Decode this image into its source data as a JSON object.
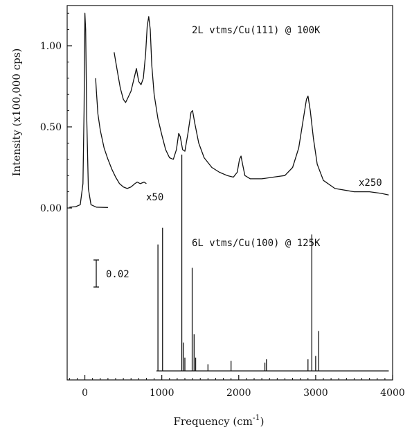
{
  "chart_data": {
    "type": "line",
    "xlabel": "Frequency (cm",
    "xlabel_exponent": "-1",
    "xlabel_close": ")",
    "ylabel": "Intensity (x100,000 cps)",
    "xlim": [
      -230,
      4000
    ],
    "ylim": [
      0,
      1.35
    ],
    "x_ticks": [
      0,
      1000,
      2000,
      3000,
      4000
    ],
    "y_ticks": [
      0.0,
      0.5,
      1.0
    ],
    "y_tick_labels": [
      "0.00",
      "0.50",
      "1.00"
    ],
    "panels": [
      {
        "label": "2L vtms/Cu(111) @ 100K",
        "series": [
          {
            "multiplier_label": "x50",
            "points": [
              [
                -200,
                0.005
              ],
              [
                -120,
                0.008
              ],
              [
                -60,
                0.02
              ],
              [
                -25,
                0.15
              ],
              [
                -10,
                0.6
              ],
              [
                0,
                1.2
              ],
              [
                10,
                1.1
              ],
              [
                25,
                0.55
              ],
              [
                45,
                0.12
              ],
              [
                80,
                0.02
              ],
              [
                150,
                0.005
              ],
              [
                300,
                0.003
              ]
            ]
          },
          {
            "multiplier_label": "",
            "points": [
              [
                140,
                0.8
              ],
              [
                150,
                0.72
              ],
              [
                170,
                0.58
              ],
              [
                200,
                0.48
              ],
              [
                250,
                0.37
              ],
              [
                300,
                0.3
              ],
              [
                350,
                0.24
              ],
              [
                400,
                0.19
              ],
              [
                450,
                0.15
              ],
              [
                500,
                0.13
              ],
              [
                550,
                0.12
              ],
              [
                600,
                0.13
              ],
              [
                650,
                0.15
              ],
              [
                680,
                0.16
              ],
              [
                720,
                0.15
              ],
              [
                770,
                0.16
              ],
              [
                800,
                0.15
              ]
            ]
          },
          {
            "multiplier_label": "x250",
            "points": [
              [
                380,
                0.96
              ],
              [
                420,
                0.85
              ],
              [
                460,
                0.74
              ],
              [
                500,
                0.67
              ],
              [
                530,
                0.65
              ],
              [
                560,
                0.68
              ],
              [
                600,
                0.72
              ],
              [
                640,
                0.8
              ],
              [
                670,
                0.86
              ],
              [
                700,
                0.78
              ],
              [
                730,
                0.76
              ],
              [
                760,
                0.8
              ],
              [
                790,
                0.95
              ],
              [
                810,
                1.12
              ],
              [
                830,
                1.18
              ],
              [
                850,
                1.1
              ],
              [
                870,
                0.88
              ],
              [
                900,
                0.7
              ],
              [
                950,
                0.55
              ],
              [
                1000,
                0.45
              ],
              [
                1050,
                0.36
              ],
              [
                1100,
                0.31
              ],
              [
                1150,
                0.3
              ],
              [
                1190,
                0.36
              ],
              [
                1220,
                0.46
              ],
              [
                1240,
                0.44
              ],
              [
                1270,
                0.36
              ],
              [
                1300,
                0.35
              ],
              [
                1340,
                0.46
              ],
              [
                1380,
                0.59
              ],
              [
                1400,
                0.6
              ],
              [
                1430,
                0.52
              ],
              [
                1480,
                0.4
              ],
              [
                1550,
                0.31
              ],
              [
                1650,
                0.25
              ],
              [
                1750,
                0.22
              ],
              [
                1850,
                0.2
              ],
              [
                1930,
                0.19
              ],
              [
                1980,
                0.22
              ],
              [
                2010,
                0.3
              ],
              [
                2030,
                0.32
              ],
              [
                2050,
                0.27
              ],
              [
                2080,
                0.2
              ],
              [
                2150,
                0.18
              ],
              [
                2300,
                0.18
              ],
              [
                2450,
                0.19
              ],
              [
                2600,
                0.2
              ],
              [
                2700,
                0.25
              ],
              [
                2780,
                0.37
              ],
              [
                2840,
                0.55
              ],
              [
                2880,
                0.67
              ],
              [
                2900,
                0.69
              ],
              [
                2930,
                0.6
              ],
              [
                2970,
                0.43
              ],
              [
                3020,
                0.27
              ],
              [
                3100,
                0.17
              ],
              [
                3250,
                0.12
              ],
              [
                3500,
                0.1
              ],
              [
                3700,
                0.1
              ],
              [
                3850,
                0.09
              ],
              [
                3950,
                0.08
              ]
            ]
          }
        ]
      },
      {
        "label": "6L vtms/Cu(100) @ 125K",
        "scale_bar_label": "0.02",
        "baseline_range": [
          930,
          3950
        ],
        "peaks": [
          {
            "x": 950,
            "h": 0.76
          },
          {
            "x": 1010,
            "h": 0.86
          },
          {
            "x": 1260,
            "h": 1.3
          },
          {
            "x": 1280,
            "h": 0.17
          },
          {
            "x": 1300,
            "h": 0.08
          },
          {
            "x": 1395,
            "h": 0.62
          },
          {
            "x": 1420,
            "h": 0.22
          },
          {
            "x": 1440,
            "h": 0.08
          },
          {
            "x": 1600,
            "h": 0.04
          },
          {
            "x": 1900,
            "h": 0.06
          },
          {
            "x": 2340,
            "h": 0.05
          },
          {
            "x": 2360,
            "h": 0.07
          },
          {
            "x": 2900,
            "h": 0.07
          },
          {
            "x": 2950,
            "h": 0.82
          },
          {
            "x": 3000,
            "h": 0.09
          },
          {
            "x": 3040,
            "h": 0.24
          }
        ]
      }
    ]
  }
}
